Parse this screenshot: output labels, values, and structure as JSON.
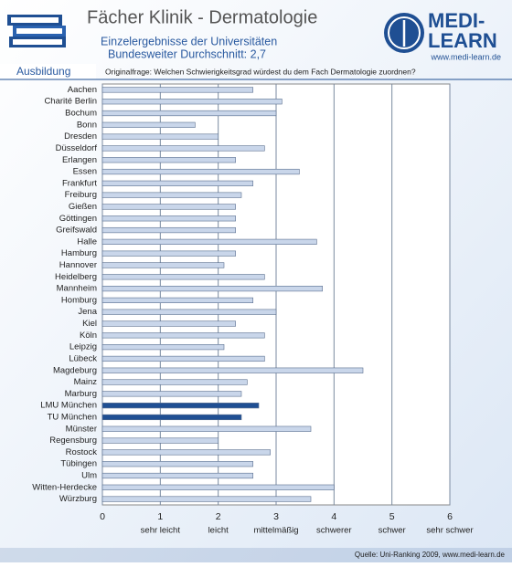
{
  "header": {
    "logo_top": "MEDI-",
    "logo_bottom": "LEARN",
    "logo_url": "www.medi-learn.de",
    "section": "Ausbildung",
    "question": "Originalfrage: Welchen Schwierigkeitsgrad würdest du dem Fach Dermatologie zuordnen?"
  },
  "footer": {
    "source": "Quelle: Uni-Ranking 2009, www.medi-learn.de"
  },
  "chart_data": {
    "type": "hbar",
    "title": "Fächer Klinik - Dermatologie",
    "subtitle": [
      "Einzelergebnisse der Universitäten",
      "Bundesweiter Durchschnitt: 2,7"
    ],
    "categories": [
      "Aachen",
      "Charité Berlin",
      "Bochum",
      "Bonn",
      "Dresden",
      "Düsseldorf",
      "Erlangen",
      "Essen",
      "Frankfurt",
      "Freiburg",
      "Gießen",
      "Göttingen",
      "Greifswald",
      "Halle",
      "Hamburg",
      "Hannover",
      "Heidelberg",
      "Mannheim",
      "Homburg",
      "Jena",
      "Kiel",
      "Köln",
      "Leipzig",
      "Lübeck",
      "Magdeburg",
      "Mainz",
      "Marburg",
      "LMU München",
      "TU München",
      "Münster",
      "Regensburg",
      "Rostock",
      "Tübingen",
      "Ulm",
      "Witten-Herdecke",
      "Würzburg"
    ],
    "values": [
      2.6,
      3.1,
      3.0,
      1.6,
      2.0,
      2.8,
      2.3,
      3.4,
      2.6,
      2.4,
      2.3,
      2.3,
      2.3,
      3.7,
      2.3,
      2.1,
      2.8,
      3.8,
      2.6,
      3.0,
      2.3,
      2.8,
      2.1,
      2.8,
      4.5,
      2.5,
      2.4,
      2.7,
      2.4,
      3.6,
      2.0,
      2.9,
      2.6,
      2.6,
      4.0,
      3.6
    ],
    "colors": [
      "#c9d6ea",
      "#c9d6ea",
      "#c9d6ea",
      "#c9d6ea",
      "#c9d6ea",
      "#c9d6ea",
      "#c9d6ea",
      "#c9d6ea",
      "#c9d6ea",
      "#c9d6ea",
      "#c9d6ea",
      "#c9d6ea",
      "#c9d6ea",
      "#c9d6ea",
      "#c9d6ea",
      "#c9d6ea",
      "#c9d6ea",
      "#c9d6ea",
      "#c9d6ea",
      "#c9d6ea",
      "#c9d6ea",
      "#c9d6ea",
      "#c9d6ea",
      "#c9d6ea",
      "#c9d6ea",
      "#c9d6ea",
      "#c9d6ea",
      "#1f4f93",
      "#1f4f93",
      "#c9d6ea",
      "#c9d6ea",
      "#c9d6ea",
      "#c9d6ea",
      "#c9d6ea",
      "#c9d6ea",
      "#c9d6ea"
    ],
    "xlim": [
      0,
      6
    ],
    "xticks": [
      0,
      1,
      2,
      3,
      4,
      5,
      6
    ],
    "xtick_descriptions": [
      {
        "value": 1,
        "label": "sehr leicht"
      },
      {
        "value": 2,
        "label": "leicht"
      },
      {
        "value": 3,
        "label": "mittelmäßig"
      },
      {
        "value": 4,
        "label": "schwerer"
      },
      {
        "value": 5,
        "label": "schwer"
      },
      {
        "value": 6,
        "label": "sehr schwer"
      }
    ],
    "grid": true
  }
}
